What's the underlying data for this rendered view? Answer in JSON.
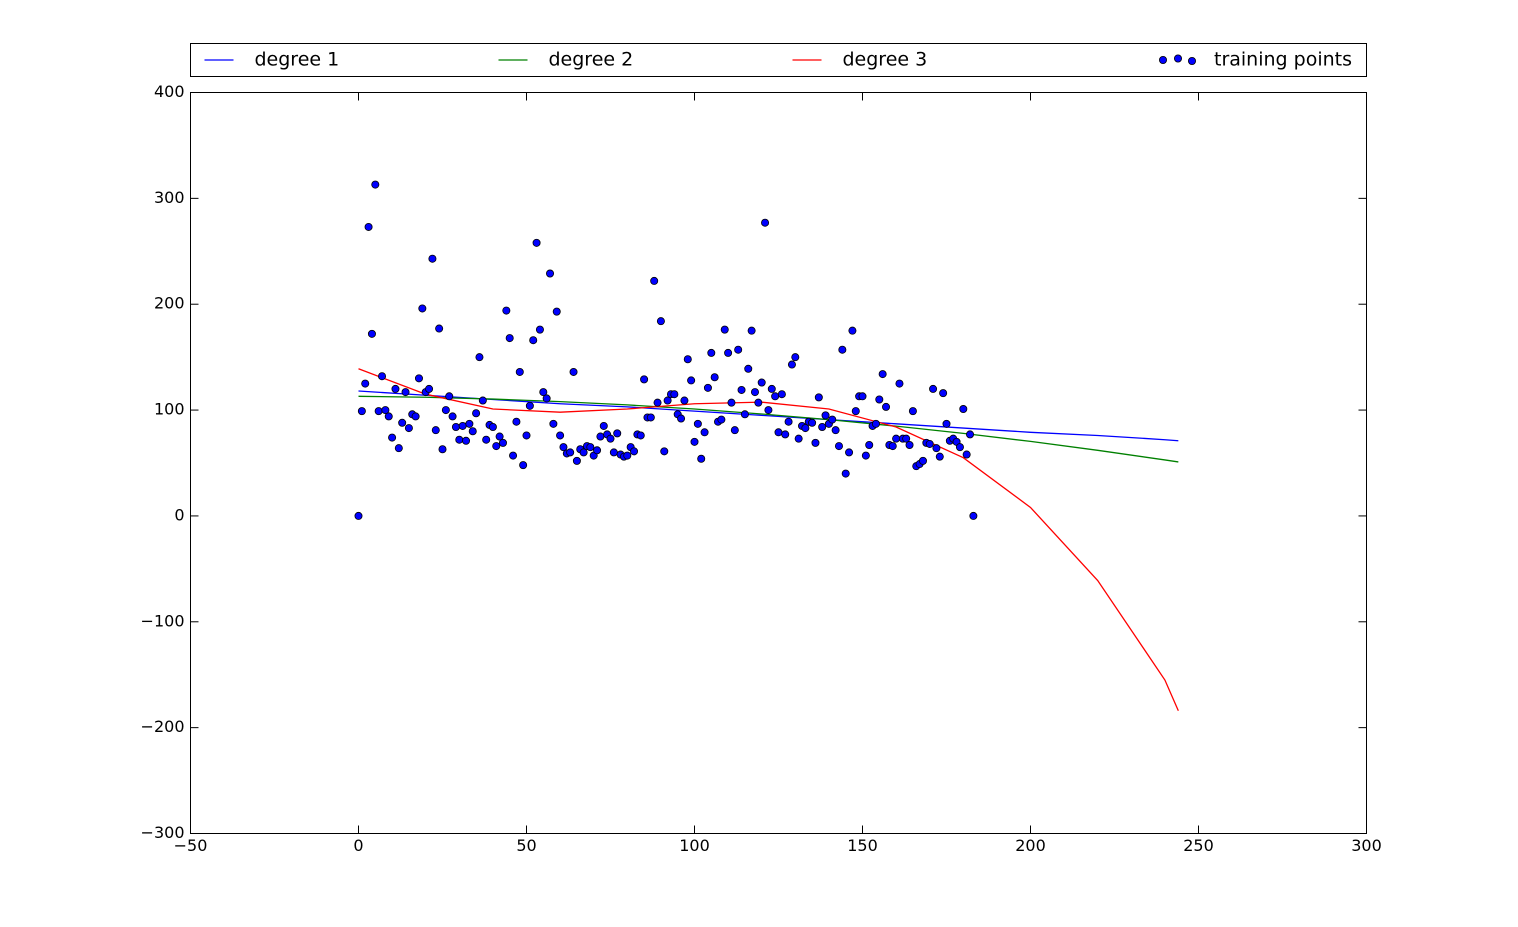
{
  "chart_data": {
    "type": "line",
    "xlim": [
      -50,
      300
    ],
    "xticks": [
      {
        "value": -50,
        "label": "−50"
      },
      0,
      50,
      100,
      150,
      200,
      250,
      300
    ],
    "ylim": [
      -300,
      400
    ],
    "yticks": [
      {
        "value": -300,
        "label": "−300"
      },
      {
        "value": -200,
        "label": "−200"
      },
      {
        "value": -100,
        "label": "−100"
      },
      0,
      100,
      200,
      300,
      400
    ],
    "series": [
      {
        "name": "degree 1",
        "type": "line",
        "color": "#0000ff",
        "x": [
          0,
          20,
          40,
          60,
          80,
          100,
          120,
          140,
          160,
          180,
          200,
          220,
          240,
          244
        ],
        "values": [
          118,
          114,
          110,
          106,
          103,
          99,
          95,
          91,
          87,
          83,
          79,
          76,
          72,
          71
        ]
      },
      {
        "name": "degree 2",
        "type": "line",
        "color": "#008000",
        "x": [
          0,
          20,
          40,
          60,
          80,
          100,
          120,
          140,
          160,
          180,
          200,
          220,
          240,
          244
        ],
        "values": [
          113,
          112.1,
          110.4,
          108,
          104.9,
          101,
          96.3,
          91,
          84.8,
          78,
          70.4,
          62,
          52.9,
          51
        ]
      },
      {
        "name": "degree 3",
        "type": "line",
        "color": "#ff0000",
        "x": [
          0,
          20,
          40,
          60,
          80,
          100,
          120,
          140,
          160,
          180,
          200,
          220,
          240,
          244
        ],
        "values": [
          139,
          115,
          101,
          98,
          101,
          106,
          107.5,
          101,
          84,
          55,
          8,
          -61,
          -155,
          -184
        ]
      },
      {
        "name": "training points",
        "type": "scatter",
        "color": "#0000ff",
        "x": [
          0,
          1,
          2,
          3,
          4,
          5,
          6,
          7,
          8,
          9,
          10,
          11,
          12,
          13,
          14,
          15,
          16,
          17,
          18,
          19,
          20,
          21,
          22,
          23,
          24,
          25,
          26,
          27,
          28,
          29,
          30,
          31,
          32,
          33,
          34,
          35,
          36,
          37,
          38,
          39,
          40,
          41,
          42,
          43,
          44,
          45,
          46,
          47,
          48,
          49,
          50,
          51,
          52,
          53,
          54,
          55,
          56,
          57,
          58,
          59,
          60,
          61,
          62,
          63,
          64,
          65,
          66,
          67,
          68,
          69,
          70,
          71,
          72,
          73,
          74,
          75,
          76,
          77,
          78,
          79,
          80,
          81,
          82,
          83,
          84,
          85,
          86,
          87,
          88,
          89,
          90,
          91,
          92,
          93,
          94,
          95,
          96,
          97,
          98,
          99,
          100,
          101,
          102,
          103,
          104,
          105,
          106,
          107,
          108,
          109,
          110,
          111,
          112,
          113,
          114,
          115,
          116,
          117,
          118,
          119,
          120,
          121,
          122,
          123,
          124,
          125,
          126,
          127,
          128,
          129,
          130,
          131,
          132,
          133,
          134,
          135,
          136,
          137,
          138,
          139,
          140,
          141,
          142,
          143,
          144,
          145,
          146,
          147,
          148,
          149,
          150,
          151,
          152,
          153,
          154,
          155,
          156,
          157,
          158,
          159,
          160,
          161,
          162,
          163,
          164,
          165,
          166,
          167,
          168,
          169,
          170,
          171,
          172,
          173,
          174,
          175,
          176,
          177,
          178,
          179,
          180,
          181,
          182,
          183
        ],
        "values": [
          0,
          99,
          125,
          273,
          172,
          313,
          99,
          132,
          100,
          94,
          74,
          120,
          64,
          88,
          117,
          83,
          96,
          94,
          130,
          196,
          117,
          120,
          243,
          81,
          177,
          63,
          100,
          113,
          94,
          84,
          72,
          85,
          71,
          87,
          80,
          97,
          150,
          109,
          72,
          86,
          84,
          66,
          75,
          69,
          194,
          168,
          57,
          89,
          136,
          48,
          76,
          104,
          166,
          258,
          176,
          117,
          111,
          229,
          87,
          193,
          76,
          65,
          59,
          60,
          136,
          52,
          63,
          60,
          66,
          65,
          57,
          62,
          75,
          85,
          77,
          73,
          60,
          78,
          58,
          56,
          57,
          65,
          61,
          77,
          76,
          129,
          93,
          93,
          222,
          107,
          184,
          61,
          109,
          115,
          115,
          96,
          92,
          109,
          148,
          128,
          70,
          87,
          54,
          79,
          121,
          154,
          131,
          89,
          91,
          176,
          154,
          107,
          81,
          157,
          119,
          96,
          139,
          175,
          117,
          107,
          126,
          277,
          100,
          120,
          113,
          79,
          115,
          77,
          89,
          143,
          150,
          73,
          85,
          83,
          89,
          88,
          69,
          112,
          84,
          95,
          87,
          91,
          81,
          66,
          157,
          40,
          60,
          175,
          99,
          113,
          113,
          57,
          67,
          85,
          87,
          110,
          134,
          103,
          67,
          66,
          73,
          125,
          73,
          73,
          67,
          99,
          47,
          49,
          52,
          69,
          68,
          120,
          64,
          56,
          116,
          87,
          71,
          73,
          70,
          65,
          101,
          58,
          77,
          0
        ]
      }
    ]
  }
}
